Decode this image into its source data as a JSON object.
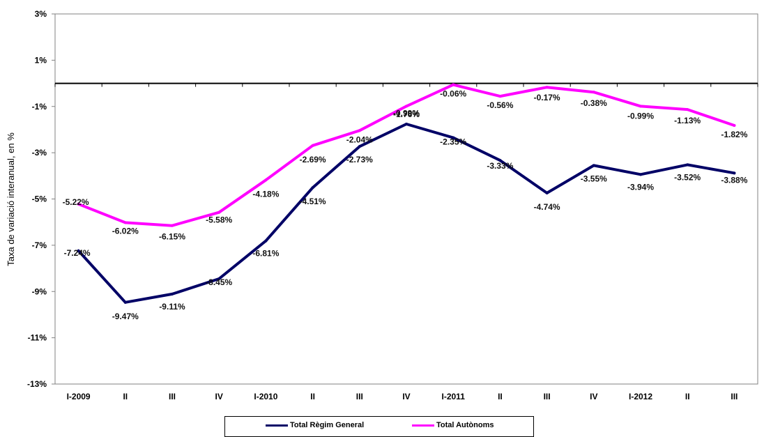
{
  "chart_data": {
    "type": "line",
    "title": "",
    "xlabel": "",
    "ylabel": "Taxa de variació interanual, en %",
    "categories": [
      "I-2009",
      "II",
      "III",
      "IV",
      "I-2010",
      "II",
      "III",
      "IV",
      "I-2011",
      "II",
      "III",
      "IV",
      "I-2012",
      "II",
      "III"
    ],
    "ylim": [
      -13,
      3
    ],
    "yticks": [
      3,
      1,
      -1,
      -3,
      -5,
      -7,
      -9,
      -11,
      -13
    ],
    "ytick_labels": [
      "3%",
      "1%",
      "-1%",
      "-3%",
      "-5%",
      "-7%",
      "-9%",
      "-11%",
      "-13%"
    ],
    "grid": false,
    "legend_position": "bottom",
    "series": [
      {
        "name": "Total Règim General",
        "color": "#000066",
        "values": [
          -7.24,
          -9.47,
          -9.11,
          -8.45,
          -6.81,
          -4.51,
          -2.73,
          -1.76,
          -2.35,
          -3.33,
          -4.74,
          -3.55,
          -3.94,
          -3.52,
          -3.88
        ],
        "labels": [
          "-7.24%",
          "-9.47%",
          "-9.11%",
          "-8.45%",
          "-6.81%",
          "-4.51%",
          "-2.73%",
          "-1.76%",
          "-2.35%",
          "-3.33%",
          "-4.74%",
          "-3.55%",
          "-3.94%",
          "-3.52%",
          "-3.88%"
        ]
      },
      {
        "name": "Total Autònoms",
        "color": "#ff00ff",
        "values": [
          -5.22,
          -6.02,
          -6.15,
          -5.58,
          -4.18,
          -2.69,
          -2.04,
          -0.99,
          -0.06,
          -0.56,
          -0.17,
          -0.38,
          -0.99,
          -1.13,
          -1.82
        ],
        "labels": [
          "-5.22%",
          "-6.02%",
          "-6.15%",
          "-5.58%",
          "-4.18%",
          "-2.69%",
          "-2.04%",
          "-0.99%",
          "-0.06%",
          "-0.56%",
          "-0.17%",
          "-0.38%",
          "-0.99%",
          "-1.13%",
          "-1.82%"
        ]
      }
    ]
  }
}
